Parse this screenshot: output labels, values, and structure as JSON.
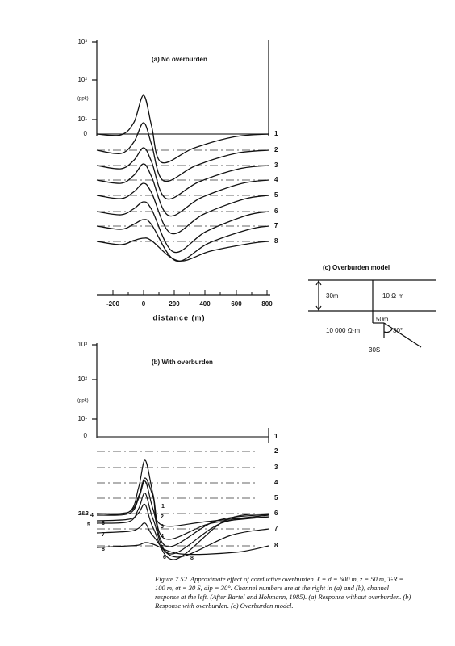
{
  "panel_a": {
    "title": "(a) No overburden",
    "y_labels": [
      "10³",
      "10²",
      "(ppk)",
      "10¹",
      "0"
    ],
    "channels": [
      "1",
      "2",
      "3",
      "4",
      "5",
      "6",
      "7",
      "8"
    ],
    "x_ticks": [
      "-200",
      "0",
      "200",
      "400",
      "600",
      "800"
    ],
    "x_label": "distance (m)"
  },
  "panel_b": {
    "title": "(b) With overburden",
    "y_labels": [
      "10³",
      "10²",
      "(ppk)",
      "10¹",
      "0"
    ],
    "channels": [
      "1",
      "2",
      "3",
      "4",
      "5",
      "6",
      "7",
      "8"
    ],
    "left_labels": [
      "2&3",
      "4",
      "5",
      "6",
      "7",
      "8"
    ],
    "inner_labels": [
      "1",
      "2",
      "3",
      "4",
      "5",
      "6",
      "8"
    ]
  },
  "panel_c": {
    "title": "(c) Overburden model",
    "thickness": "30m",
    "overburden_resistivity": "10 Ω·m",
    "depth": "50m",
    "host_resistivity": "10 000 Ω·m",
    "dip": "30°",
    "conductance": "30S"
  },
  "caption": "Figure 7.52. Approximate effect of conductive overburden. ℓ = d = 600 m, z = 50 m, T-R = 100 m, σt = 30 S, dip = 30°. Channel numbers are at the right in (a) and (b), channel response at the left. (After Bartel and Hohmann, 1985). (a) Response without overburden. (b) Response with overburden. (c) Overburden model."
}
